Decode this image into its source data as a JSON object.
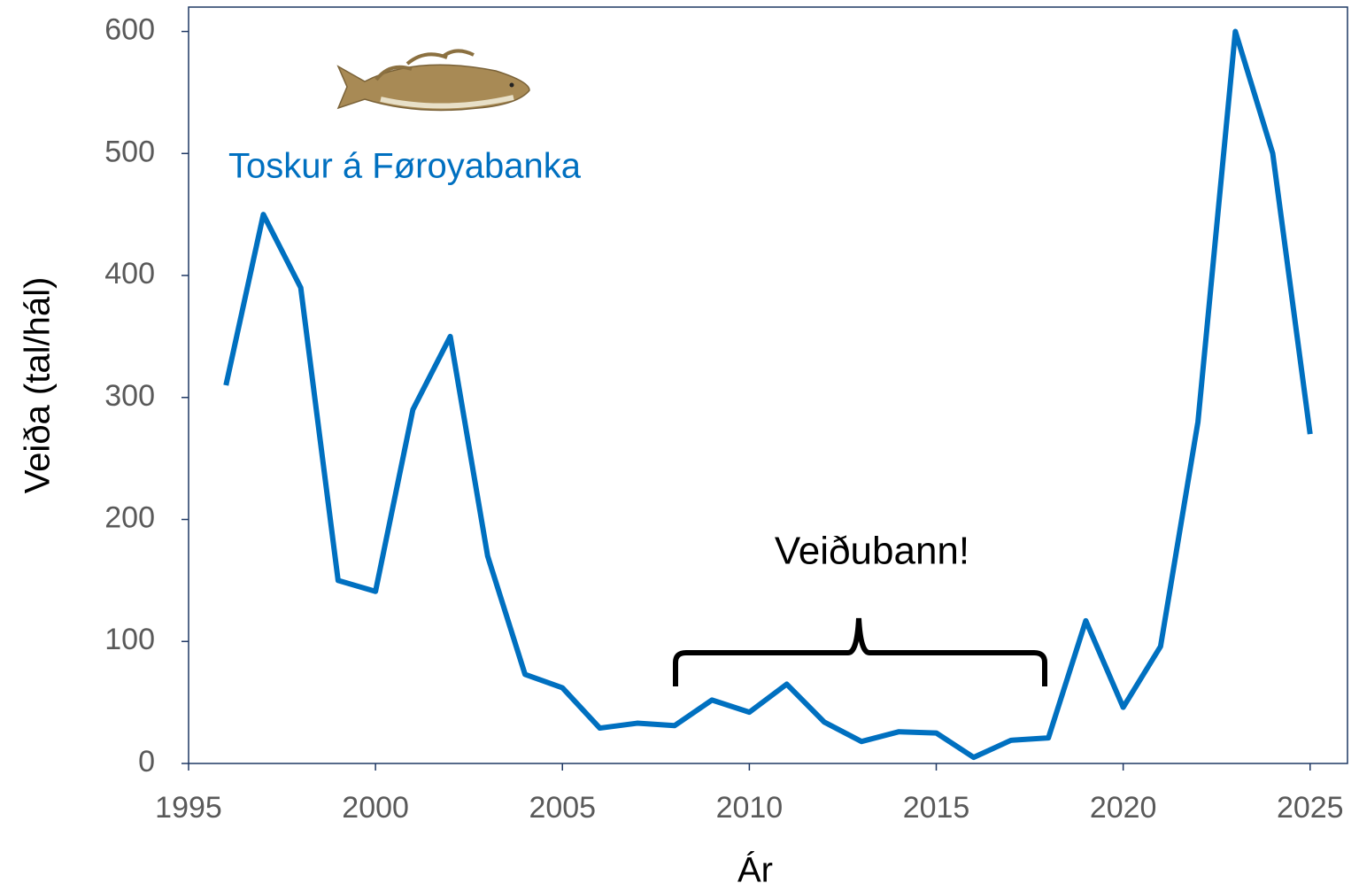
{
  "chart_data": {
    "type": "line",
    "x": [
      1996,
      1997,
      1998,
      1999,
      2000,
      2001,
      2002,
      2003,
      2004,
      2005,
      2006,
      2007,
      2008,
      2009,
      2010,
      2011,
      2012,
      2013,
      2014,
      2015,
      2016,
      2017,
      2018,
      2019,
      2020,
      2021,
      2022,
      2023,
      2024,
      2025
    ],
    "series": [
      {
        "name": "Toskur á Føroyabanka",
        "color": "#0070c0",
        "values": [
          310,
          450,
          390,
          150,
          141,
          290,
          350,
          170,
          73,
          62,
          29,
          33,
          31,
          52,
          42,
          65,
          34,
          18,
          26,
          25,
          5,
          19,
          21,
          117,
          46,
          96,
          280,
          600,
          500,
          270
        ]
      }
    ],
    "xlabel": "Ár",
    "ylabel": "Veiða (tal/hál)",
    "annotation": "Veiðubann!",
    "xlim": [
      1995,
      2026
    ],
    "xticks": [
      1995,
      2000,
      2005,
      2010,
      2015,
      2020,
      2025
    ],
    "ylim": [
      0,
      620
    ],
    "yticks": [
      0,
      100,
      200,
      300,
      400,
      500,
      600
    ]
  }
}
